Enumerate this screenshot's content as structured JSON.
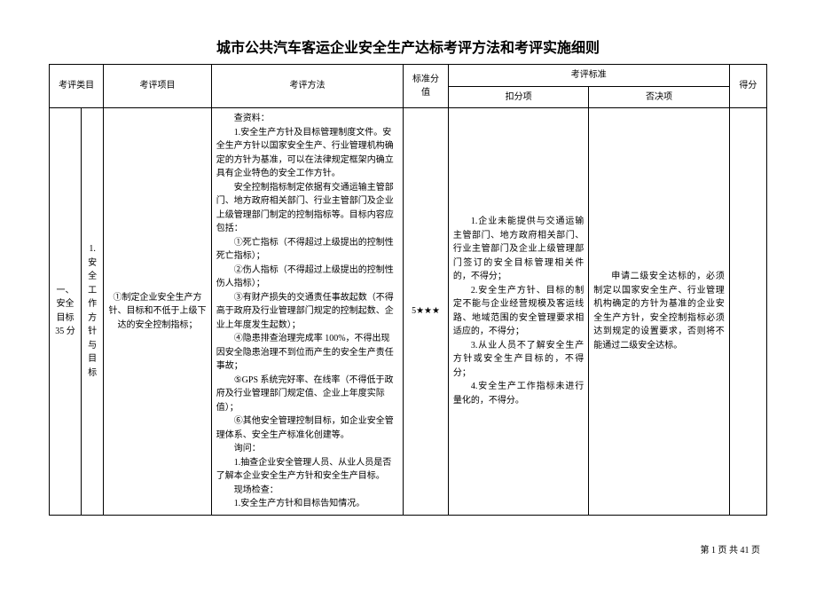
{
  "doc": {
    "title": "城市公共汽车客运企业安全生产达标考评方法和考评实施细则",
    "footer": "第 1 页  共 41 页"
  },
  "headers": {
    "category": "考评类目",
    "item": "考评项目",
    "method": "考评方法",
    "score": "标准分值",
    "criteria": "考评标准",
    "deduction": "扣分项",
    "veto": "否决项",
    "result": "得分"
  },
  "row": {
    "category": "一、安全目标 35 分",
    "subcategory": "1. 安全工作方针与目标",
    "item": "①制定企业安全生产方针、目标和不低于上级下达的安全控制指标；",
    "method": {
      "p1": "查资料：",
      "p2": "1.安全生产方针及目标管理制度文件。安全生产方针以国家安全生产、行业管理机构确定的方针为基准，可以在法律规定框架内确立具有企业特色的安全工作方针。",
      "p3": "安全控制指标制定依据有交通运输主管部门、地方政府相关部门、行业主管部门及企业上级管理部门制定的控制指标等。目标内容应包括：",
      "p4": "①死亡指标（不得超过上级提出的控制性死亡指标）；",
      "p5": "②伤人指标（不得超过上级提出的控制性伤人指标）；",
      "p6": "③有财产损失的交通责任事故起数（不得高于政府及行业管理部门规定的控制起数、企业上年度发生起数）；",
      "p7": "④隐患排查治理完成率 100%，不得出现因安全隐患治理不到位而产生的安全生产责任事故；",
      "p8": "⑤GPS 系统完好率、在线率（不得低于政府及行业管理部门规定值、企业上年度实际值）；",
      "p9": "⑥其他安全管理控制目标，如企业安全管理体系、安全生产标准化创建等。",
      "p10": "询问：",
      "p11": "1.抽查企业安全管理人员、从业人员是否了解本企业安全生产方针和安全生产目标。",
      "p12": "现场检查：",
      "p13": "1.安全生产方针和目标告知情况。"
    },
    "score": "5★★★",
    "deduction": {
      "p1": "1.企业未能提供与交通运输主管部门、地方政府相关部门、行业主管部门及企业上级管理部门签订的安全目标管理相关件的，不得分；",
      "p2": "2.安全生产方针、目标的制定不能与企业经营规模及客运线路、地域范围的安全管理要求相适应的，不得分；",
      "p3": "3.从业人员不了解安全生产方针或安全生产目标的，不得分；",
      "p4": "4.安全生产工作指标未进行量化的，不得分。"
    },
    "veto": {
      "p1": "申请二级安全达标的，必须制定以国家安全生产、行业管理机构确定的方针为基准的企业安全生产方针，安全控制指标必须达到规定的设置要求，否则将不能通过二级安全达标。"
    }
  }
}
